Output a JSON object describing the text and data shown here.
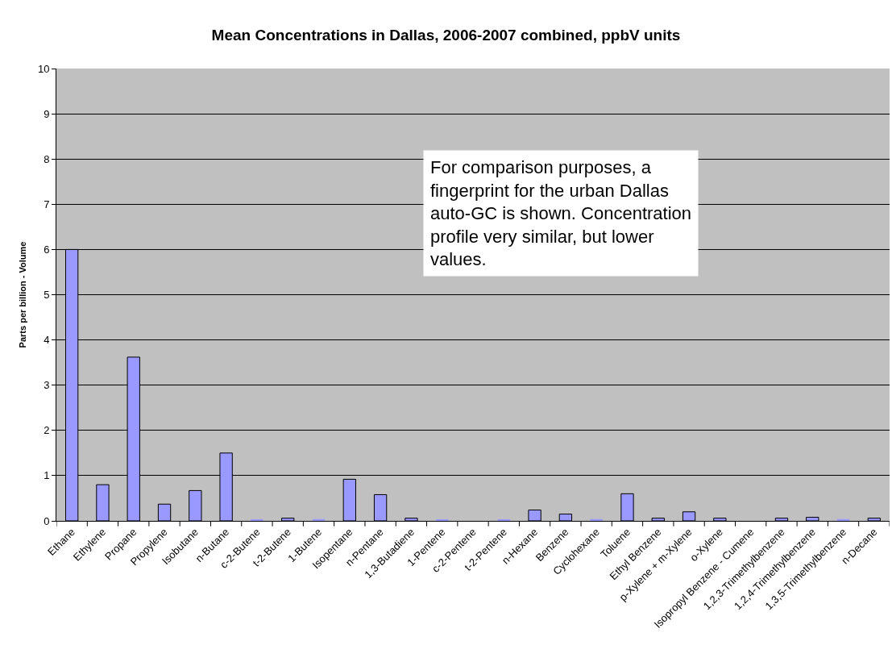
{
  "chart_data": {
    "type": "bar",
    "title": "Mean Concentrations in Dallas, 2006-2007 combined, ppbV units",
    "ylabel": "Parts per billion - Volume",
    "categories": [
      "Ethane",
      "Ethylene",
      "Propane",
      "Propylene",
      "Isobutane",
      "n-Butane",
      "c-2-Butene",
      "t-2-Butene",
      "1-Butene",
      "Isopentane",
      "n-Pentane",
      "1,3-Butadiene",
      "1-Pentene",
      "c-2-Pentene",
      "t-2-Pentene",
      "n-Hexane",
      "Benzene",
      "Cyclohexane",
      "Toluene",
      "Ethyl Benzene",
      "p-Xylene + m-Xylene",
      "o-Xylene",
      "Isopropyl Benzene - Cumene",
      "1,2,3-Trimethylbenzene",
      "1,2,4-Trimethylbenzene",
      "1,3,5-Trimethylbenzene",
      "n-Decane"
    ],
    "values": [
      6.0,
      0.8,
      3.62,
      0.37,
      0.67,
      1.5,
      0.02,
      0.06,
      0.04,
      0.92,
      0.58,
      0.06,
      0.02,
      0,
      0.02,
      0.24,
      0.15,
      0.04,
      0.6,
      0.06,
      0.2,
      0.06,
      0,
      0.06,
      0.08,
      0.04,
      0.06
    ],
    "color": "#9999ff",
    "ylim": [
      0,
      10
    ],
    "yticks": [
      0,
      1,
      2,
      3,
      4,
      5,
      6,
      7,
      8,
      9,
      10
    ],
    "grid": "y",
    "legend": false,
    "annotations": [
      "For comparison purposes, a fingerprint for the urban Dallas auto-GC is shown. Concentration profile very similar, but lower values."
    ]
  }
}
